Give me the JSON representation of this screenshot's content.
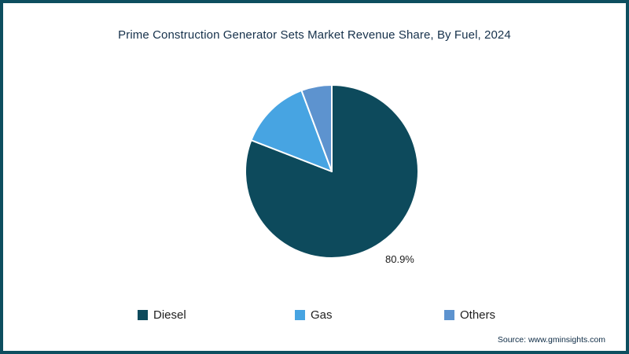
{
  "title": "Prime Construction Generator Sets Market Revenue Share, By Fuel, 2024",
  "source": "Source: www.gminsights.com",
  "colors": {
    "frame_border": "#0d4e5f",
    "title_text": "#16314b",
    "source_text": "#0d2b45"
  },
  "chart_data": {
    "type": "pie",
    "title": "Prime Construction Generator Sets Market Revenue Share, By Fuel, 2024",
    "legend_position": "bottom",
    "direction": "clockwise",
    "start_angle_deg": -90,
    "slices": [
      {
        "label": "Diesel",
        "value": 80.9,
        "color": "#0d4a5c",
        "data_label": "80.9%"
      },
      {
        "label": "Gas",
        "value": 13.4,
        "color": "#47a4e2",
        "data_label": ""
      },
      {
        "label": "Others",
        "value": 5.7,
        "color": "#5d93cf",
        "data_label": ""
      }
    ]
  }
}
